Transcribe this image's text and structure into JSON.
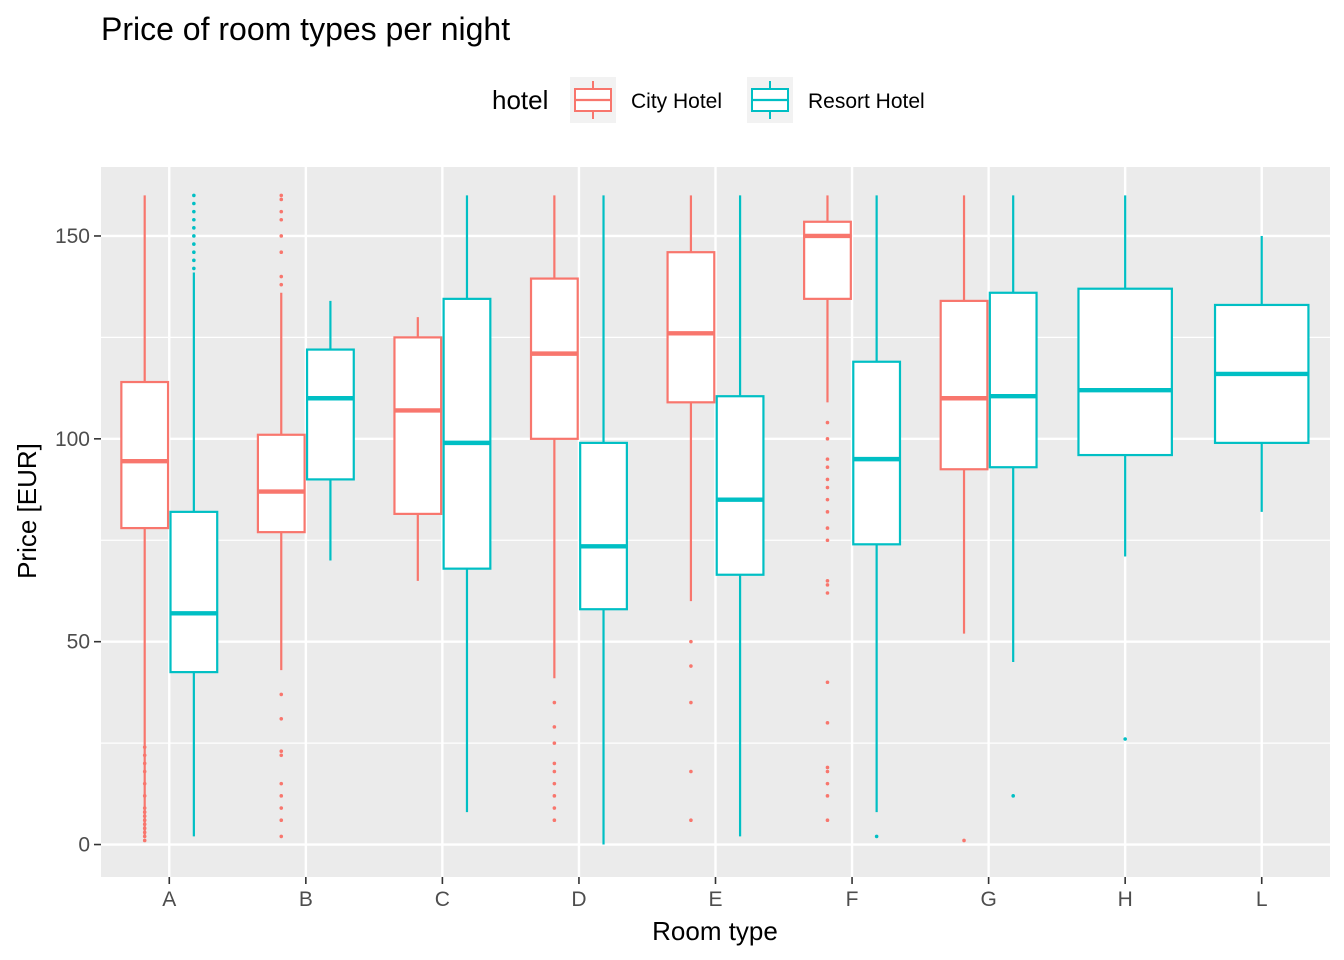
{
  "chart_data": {
    "type": "boxplot",
    "title": "Price of room types per night",
    "xlabel": "Room type",
    "ylabel": "Price [EUR]",
    "ylim": [
      -8,
      167
    ],
    "yticks": [
      0,
      50,
      100,
      150
    ],
    "grid": true,
    "legend": {
      "title": "hotel",
      "placement": "top"
    },
    "categories": [
      "A",
      "B",
      "C",
      "D",
      "E",
      "F",
      "G",
      "H",
      "L"
    ],
    "series": [
      {
        "name": "City Hotel",
        "color": "#F8766D",
        "boxes": [
          {
            "category": "A",
            "whisker_low": 2,
            "q1": 78,
            "median": 94.5,
            "q3": 114,
            "whisker_high": 160,
            "outliers": [
              1,
              2,
              3,
              4,
              5,
              6,
              7,
              8,
              9,
              12,
              15,
              18,
              20,
              22,
              24
            ]
          },
          {
            "category": "B",
            "whisker_low": 43,
            "q1": 77,
            "median": 87,
            "q3": 101,
            "whisker_high": 136,
            "outliers": [
              2,
              6,
              9,
              12,
              15,
              22,
              23,
              31,
              37,
              138,
              140,
              146,
              150,
              154,
              156,
              159,
              160
            ]
          },
          {
            "category": "C",
            "whisker_low": 65,
            "q1": 81.5,
            "median": 107,
            "q3": 125,
            "whisker_high": 130,
            "outliers": []
          },
          {
            "category": "D",
            "whisker_low": 41,
            "q1": 100,
            "median": 121,
            "q3": 139.5,
            "whisker_high": 160,
            "outliers": [
              6,
              9,
              12,
              15,
              18,
              20,
              25,
              29,
              35
            ]
          },
          {
            "category": "E",
            "whisker_low": 60,
            "q1": 109,
            "median": 126,
            "q3": 146,
            "whisker_high": 160,
            "outliers": [
              6,
              18,
              35,
              44,
              50
            ]
          },
          {
            "category": "F",
            "whisker_low": 109,
            "q1": 134.5,
            "median": 150,
            "q3": 153.5,
            "whisker_high": 160,
            "outliers": [
              6,
              12,
              15,
              18,
              19,
              30,
              40,
              62,
              64,
              65,
              75,
              78,
              82,
              85,
              88,
              90,
              93,
              95,
              100,
              104
            ]
          },
          {
            "category": "G",
            "whisker_low": 52,
            "q1": 92.5,
            "median": 110,
            "q3": 134,
            "whisker_high": 160,
            "outliers": [
              1
            ]
          }
        ]
      },
      {
        "name": "Resort Hotel",
        "color": "#00BFC4",
        "boxes": [
          {
            "category": "A",
            "whisker_low": 2,
            "q1": 42.5,
            "median": 57,
            "q3": 82,
            "whisker_high": 141,
            "outliers": [
              142,
              144,
              146,
              148,
              150,
              152,
              154,
              156,
              158,
              160
            ]
          },
          {
            "category": "B",
            "whisker_low": 70,
            "q1": 90,
            "median": 110,
            "q3": 122,
            "whisker_high": 134,
            "outliers": []
          },
          {
            "category": "C",
            "whisker_low": 8,
            "q1": 68,
            "median": 99,
            "q3": 134.5,
            "whisker_high": 160,
            "outliers": []
          },
          {
            "category": "D",
            "whisker_low": 0,
            "q1": 58,
            "median": 73.5,
            "q3": 99,
            "whisker_high": 160,
            "outliers": []
          },
          {
            "category": "E",
            "whisker_low": 2,
            "q1": 66.5,
            "median": 85,
            "q3": 110.5,
            "whisker_high": 160,
            "outliers": []
          },
          {
            "category": "F",
            "whisker_low": 8,
            "q1": 74,
            "median": 95,
            "q3": 119,
            "whisker_high": 160,
            "outliers": [
              2
            ]
          },
          {
            "category": "G",
            "whisker_low": 45,
            "q1": 93,
            "median": 110.5,
            "q3": 136,
            "whisker_high": 160,
            "outliers": [
              12
            ]
          },
          {
            "category": "H",
            "whisker_low": 71,
            "q1": 96,
            "median": 112,
            "q3": 137,
            "whisker_high": 160,
            "outliers": [
              26
            ]
          },
          {
            "category": "L",
            "whisker_low": 82,
            "q1": 99,
            "median": 116,
            "q3": 133,
            "whisker_high": 150,
            "outliers": []
          }
        ]
      }
    ]
  }
}
